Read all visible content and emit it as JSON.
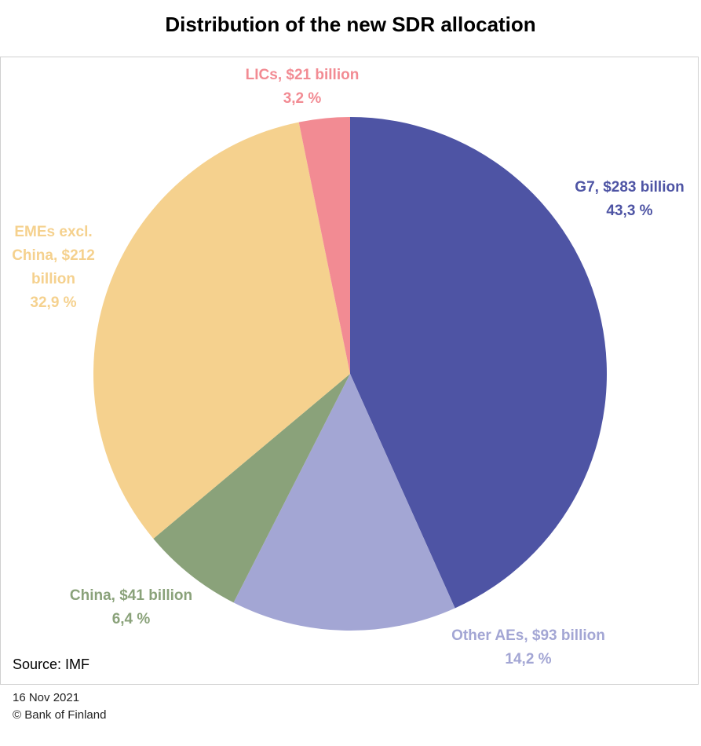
{
  "chart_data": {
    "type": "pie",
    "title": "Distribution of the new SDR allocation",
    "categories": [
      "G7, $283 billion",
      "Other AEs, $93 billion",
      "China, $41 billion",
      "EMEs excl. China, $212 billion",
      "LICs, $21 billion"
    ],
    "values": [
      43.3,
      14.2,
      6.4,
      32.9,
      3.2
    ],
    "value_labels": [
      "43,3 %",
      "14,2 %",
      "6,4 %",
      "32,9 %",
      "3,2 %"
    ],
    "colors": [
      "#4e54a4",
      "#a3a6d4",
      "#8aa27a",
      "#f5d18e",
      "#f28b93"
    ],
    "source": "Source: IMF",
    "footer": [
      "16 Nov 2021",
      "© Bank of Finland"
    ]
  }
}
